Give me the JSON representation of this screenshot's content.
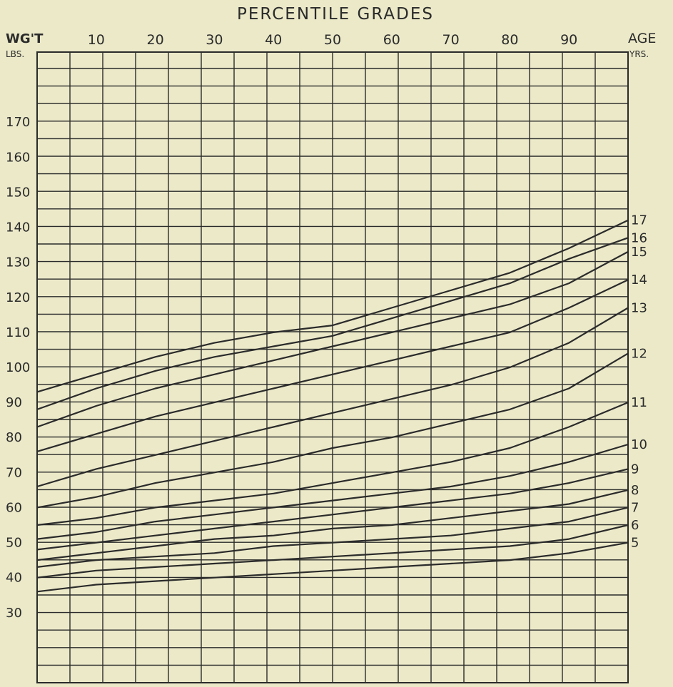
{
  "chart_data": {
    "type": "line",
    "title": "PERCENTILE GRADES",
    "y_label_top": "WG'T",
    "y_label_unit": "LBS.",
    "age_label_top": "AGE",
    "age_label_unit": "YRS.",
    "x_ticks": [
      10,
      20,
      30,
      40,
      50,
      60,
      70,
      80,
      90
    ],
    "y_ticks": [
      30,
      40,
      50,
      60,
      70,
      80,
      90,
      100,
      110,
      120,
      130,
      140,
      150,
      160,
      170
    ],
    "xlim": [
      0,
      100
    ],
    "ylim": [
      10,
      190
    ],
    "grid": true,
    "series": [
      {
        "name": "17",
        "x": [
          0,
          10,
          20,
          30,
          40,
          50,
          60,
          70,
          80,
          90,
          100
        ],
        "values": [
          93,
          98,
          103,
          107,
          110,
          112,
          117,
          122,
          127,
          134,
          142
        ]
      },
      {
        "name": "16",
        "x": [
          0,
          10,
          20,
          30,
          40,
          50,
          60,
          70,
          80,
          90,
          100
        ],
        "values": [
          88,
          94,
          99,
          103,
          106,
          109,
          114,
          119,
          124,
          131,
          137
        ]
      },
      {
        "name": "15",
        "x": [
          0,
          10,
          20,
          30,
          40,
          50,
          60,
          70,
          80,
          90,
          100
        ],
        "values": [
          83,
          89,
          94,
          98,
          102,
          106,
          110,
          114,
          118,
          124,
          133
        ]
      },
      {
        "name": "14",
        "x": [
          0,
          10,
          20,
          30,
          40,
          50,
          60,
          70,
          80,
          90,
          100
        ],
        "values": [
          76,
          81,
          86,
          90,
          94,
          98,
          102,
          106,
          110,
          117,
          125
        ]
      },
      {
        "name": "13",
        "x": [
          0,
          10,
          20,
          30,
          40,
          50,
          60,
          70,
          80,
          90,
          100
        ],
        "values": [
          66,
          71,
          75,
          79,
          83,
          87,
          91,
          95,
          100,
          107,
          117
        ]
      },
      {
        "name": "12",
        "x": [
          0,
          10,
          20,
          30,
          40,
          50,
          60,
          70,
          80,
          90,
          100
        ],
        "values": [
          60,
          63,
          67,
          70,
          73,
          77,
          80,
          84,
          88,
          94,
          104
        ]
      },
      {
        "name": "11",
        "x": [
          0,
          10,
          20,
          30,
          40,
          50,
          60,
          70,
          80,
          90,
          100
        ],
        "values": [
          55,
          57,
          60,
          62,
          64,
          67,
          70,
          73,
          77,
          83,
          90
        ]
      },
      {
        "name": "10",
        "x": [
          0,
          10,
          20,
          30,
          40,
          50,
          60,
          70,
          80,
          90,
          100
        ],
        "values": [
          51,
          53,
          56,
          58,
          60,
          62,
          64,
          66,
          69,
          73,
          78
        ]
      },
      {
        "name": "9",
        "x": [
          0,
          10,
          20,
          30,
          40,
          50,
          60,
          70,
          80,
          90,
          100
        ],
        "values": [
          48,
          50,
          52,
          54,
          56,
          58,
          60,
          62,
          64,
          67,
          71
        ]
      },
      {
        "name": "8",
        "x": [
          0,
          10,
          20,
          30,
          40,
          50,
          60,
          70,
          80,
          90,
          100
        ],
        "values": [
          45,
          47,
          49,
          51,
          52,
          54,
          55,
          57,
          59,
          61,
          65
        ]
      },
      {
        "name": "7",
        "x": [
          0,
          10,
          20,
          30,
          40,
          50,
          60,
          70,
          80,
          90,
          100
        ],
        "values": [
          43,
          45,
          46,
          47,
          49,
          50,
          51,
          52,
          54,
          56,
          60
        ]
      },
      {
        "name": "6",
        "x": [
          0,
          10,
          20,
          30,
          40,
          50,
          60,
          70,
          80,
          90,
          100
        ],
        "values": [
          40,
          42,
          43,
          44,
          45,
          46,
          47,
          48,
          49,
          51,
          55
        ]
      },
      {
        "name": "5",
        "x": [
          0,
          10,
          20,
          30,
          40,
          50,
          60,
          70,
          80,
          90,
          100
        ],
        "values": [
          36,
          38,
          39,
          40,
          41,
          42,
          43,
          44,
          45,
          47,
          50
        ]
      }
    ],
    "line_color": "#2b2b2b",
    "grid_color": "#2b2b2b",
    "background": "#ebe9c8"
  }
}
